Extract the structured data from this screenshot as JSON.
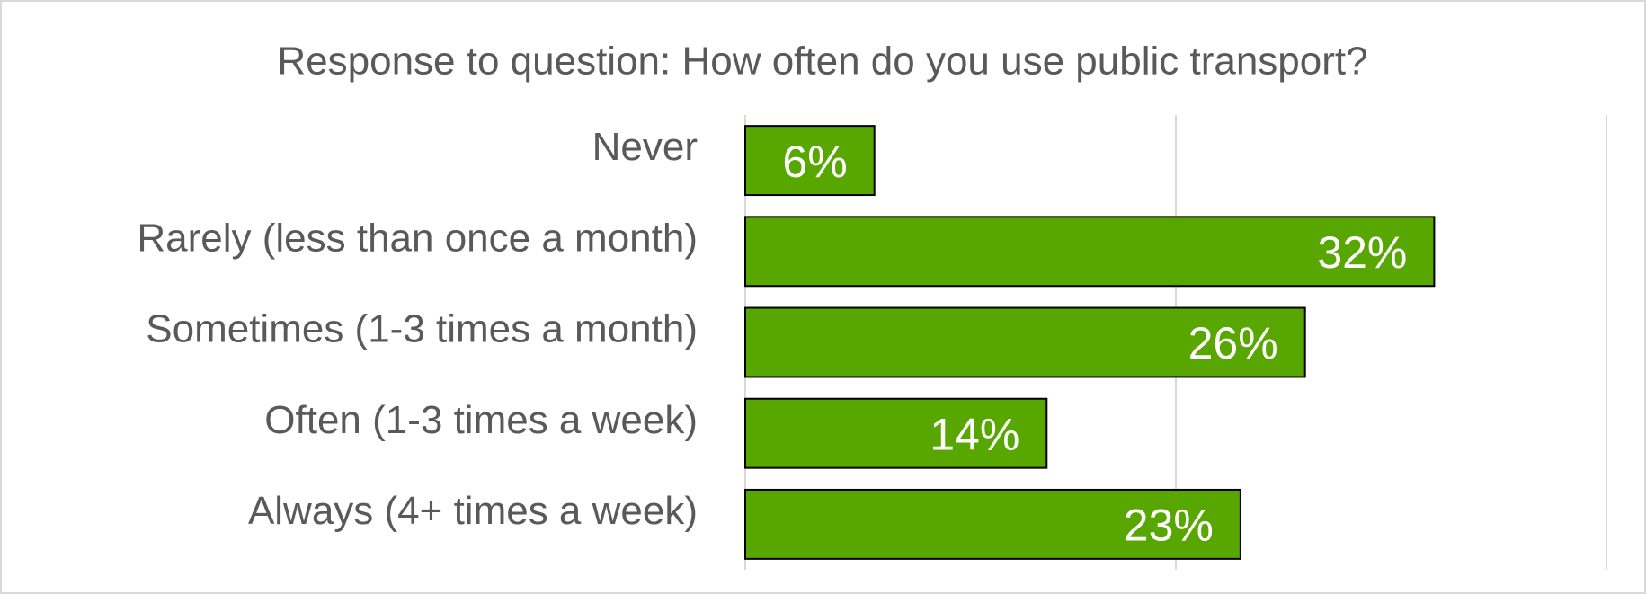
{
  "chart_data": {
    "type": "barh",
    "title": "Response to question: How often do you use public transport?",
    "categories": [
      "Never",
      "Rarely (less than once a month)",
      "Sometimes (1-3 times a month)",
      "Often (1-3 times a week)",
      "Always (4+ times a week)"
    ],
    "values": [
      6,
      32,
      26,
      14,
      23
    ],
    "value_labels": [
      "6%",
      "32%",
      "26%",
      "14%",
      "23%"
    ],
    "color": "#58a700",
    "xlim": [
      0,
      40
    ],
    "xticks": [
      0,
      20,
      40
    ],
    "grid": true
  }
}
